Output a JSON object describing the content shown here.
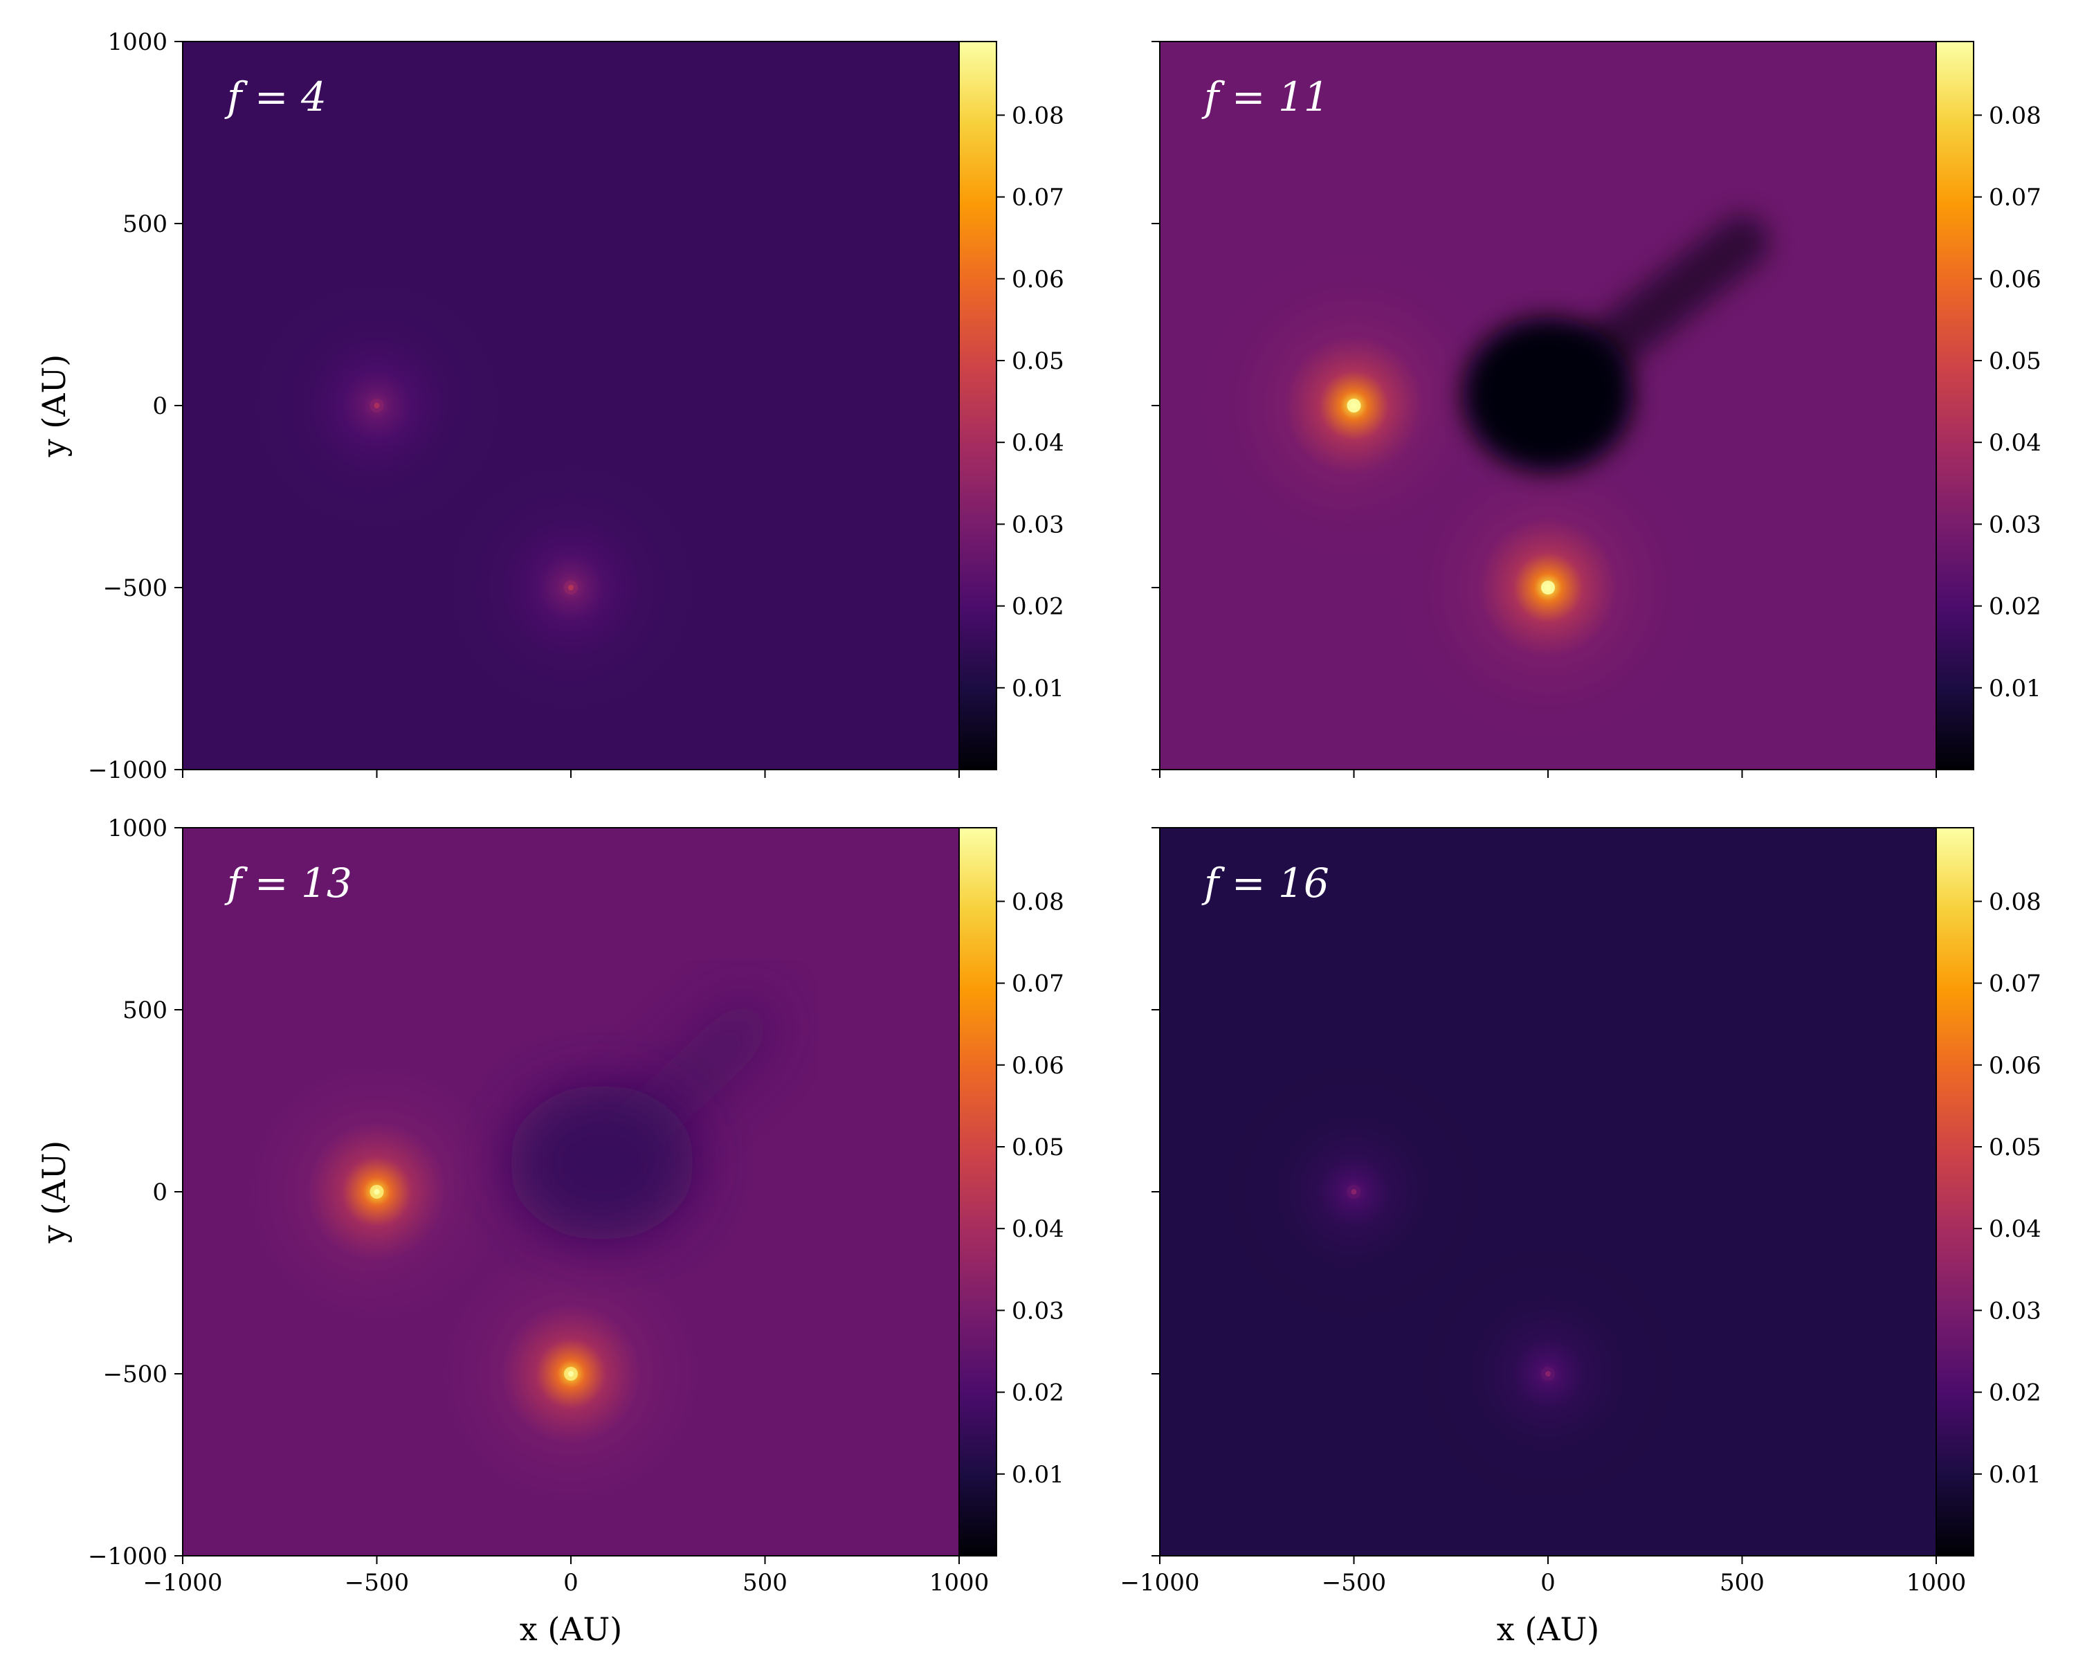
{
  "figure": {
    "colormap": [
      "#000004",
      "#1b0c41",
      "#4a0c6b",
      "#781c6d",
      "#a52c60",
      "#cf4446",
      "#ed6925",
      "#fb9b06",
      "#f7d13d",
      "#fcffa4"
    ],
    "background_color": "#ffffff"
  },
  "chart_data": [
    {
      "type": "heatmap",
      "panel": "f = 4",
      "xlabel": "",
      "ylabel": "y (AU)",
      "xlim": [
        -1000,
        1000
      ],
      "ylim": [
        -1000,
        1000
      ],
      "xticks": [
        -1000,
        -500,
        0,
        500,
        1000
      ],
      "yticks": [
        -1000,
        -500,
        0,
        500,
        1000
      ],
      "show_xtick_labels": false,
      "show_ytick_labels": true,
      "background_value": 0.016,
      "sources": [
        {
          "x": -500,
          "y": 0,
          "peak_value": 0.032
        },
        {
          "x": 0,
          "y": -500,
          "peak_value": 0.034
        }
      ],
      "cavity": null,
      "colorbar": {
        "vmin": 0,
        "vmax": 0.089,
        "ticks": [
          "0.01",
          "0.02",
          "0.03",
          "0.04",
          "0.05",
          "0.06",
          "0.07",
          "0.08"
        ]
      }
    },
    {
      "type": "heatmap",
      "panel": "f = 11",
      "xlabel": "",
      "ylabel": "",
      "xlim": [
        -1000,
        1000
      ],
      "ylim": [
        -1000,
        1000
      ],
      "xticks": [
        -1000,
        -500,
        0,
        500,
        1000
      ],
      "yticks": [
        -1000,
        -500,
        0,
        500,
        1000
      ],
      "show_xtick_labels": false,
      "show_ytick_labels": false,
      "background_value": 0.027,
      "sources": [
        {
          "x": -500,
          "y": 0,
          "peak_value": 0.089
        },
        {
          "x": 0,
          "y": -500,
          "peak_value": 0.089
        }
      ],
      "cavity": {
        "x": 0,
        "y": 30,
        "rx": 220,
        "ry": 200,
        "value": 0.001,
        "plume_to": [
          500,
          450
        ]
      },
      "colorbar": {
        "vmin": 0,
        "vmax": 0.089,
        "ticks": [
          "0.01",
          "0.02",
          "0.03",
          "0.04",
          "0.05",
          "0.06",
          "0.07",
          "0.08"
        ]
      }
    },
    {
      "type": "heatmap",
      "panel": "f = 13",
      "xlabel": "x (AU)",
      "ylabel": "y (AU)",
      "xlim": [
        -1000,
        1000
      ],
      "ylim": [
        -1000,
        1000
      ],
      "xticks": [
        -1000,
        -500,
        0,
        500,
        1000
      ],
      "yticks": [
        -1000,
        -500,
        0,
        500,
        1000
      ],
      "show_xtick_labels": true,
      "show_ytick_labels": true,
      "background_value": 0.026,
      "sources": [
        {
          "x": -500,
          "y": 0,
          "peak_value": 0.085
        },
        {
          "x": 0,
          "y": -500,
          "peak_value": 0.085
        }
      ],
      "cavity": {
        "x": 80,
        "y": 80,
        "rx": 240,
        "ry": 200,
        "value": 0.016,
        "plume_to": [
          450,
          450
        ]
      },
      "colorbar": {
        "vmin": 0,
        "vmax": 0.089,
        "ticks": [
          "0.01",
          "0.02",
          "0.03",
          "0.04",
          "0.05",
          "0.06",
          "0.07",
          "0.08"
        ]
      }
    },
    {
      "type": "heatmap",
      "panel": "f = 16",
      "xlabel": "x (AU)",
      "ylabel": "",
      "xlim": [
        -1000,
        1000
      ],
      "ylim": [
        -1000,
        1000
      ],
      "xticks": [
        -1000,
        -500,
        0,
        500,
        1000
      ],
      "yticks": [
        -1000,
        -500,
        0,
        500,
        1000
      ],
      "show_xtick_labels": true,
      "show_ytick_labels": false,
      "background_value": 0.011,
      "sources": [
        {
          "x": -500,
          "y": 0,
          "peak_value": 0.024
        },
        {
          "x": 0,
          "y": -500,
          "peak_value": 0.024
        }
      ],
      "cavity": null,
      "colorbar": {
        "vmin": 0,
        "vmax": 0.089,
        "ticks": [
          "0.01",
          "0.02",
          "0.03",
          "0.04",
          "0.05",
          "0.06",
          "0.07",
          "0.08"
        ]
      }
    }
  ]
}
